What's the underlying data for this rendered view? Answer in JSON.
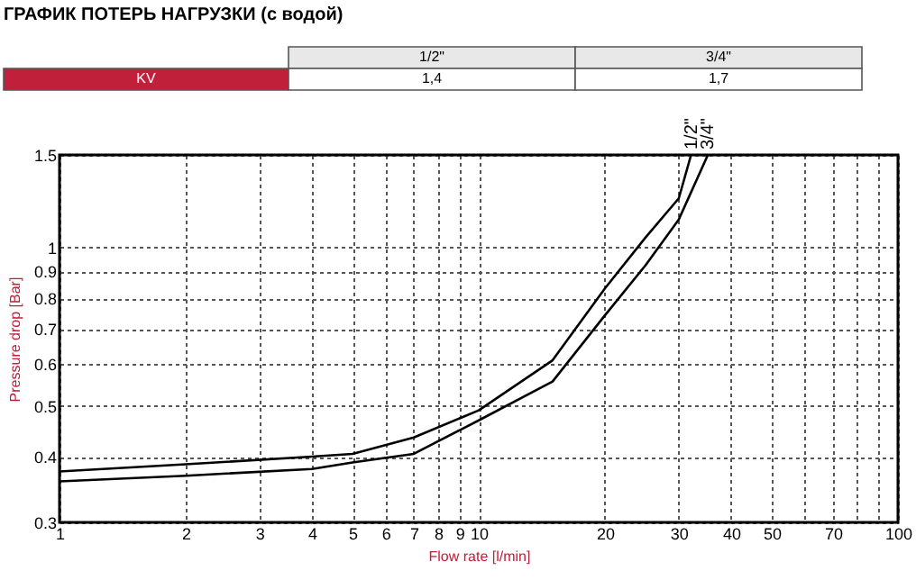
{
  "chart_data": {
    "type": "line",
    "title": "ГРАФИК ПОТЕРЬ НАГРУЗКИ (с водой)",
    "xlabel": "Flow rate [l/min]",
    "ylabel": "Pressure drop [Bar]",
    "annotations": [
      "KV",
      "1,4",
      "1,7"
    ],
    "log": "xy",
    "grid": true,
    "legend": false,
    "marker": "none",
    "line_style": "solid",
    "xlim": [
      1,
      100
    ],
    "ylim": [
      0.3,
      1.5
    ],
    "xticks": [
      1,
      2,
      3,
      4,
      5,
      6,
      7,
      8,
      9,
      10,
      20,
      30,
      40,
      50,
      {
        "value": 60,
        "label": null
      },
      70,
      {
        "value": 80,
        "label": null
      },
      {
        "value": 90,
        "label": null
      },
      100
    ],
    "yticks": [
      0.3,
      0.4,
      0.5,
      0.6,
      0.7,
      0.8,
      0.9,
      1,
      1.5
    ],
    "series": [
      {
        "name": "1/2\"",
        "color": "#000000",
        "x": [
          1,
          2,
          4,
          5,
          7,
          10,
          15,
          20,
          25,
          30,
          32.1
        ],
        "values": [
          0.375,
          0.387,
          0.4,
          0.405,
          0.435,
          0.49,
          0.61,
          0.836,
          1.045,
          1.24,
          1.5
        ]
      },
      {
        "name": "3/4\"",
        "color": "#000000",
        "x": [
          1,
          2,
          4,
          5,
          7,
          10,
          15,
          20,
          25,
          30,
          35.2
        ],
        "values": [
          0.359,
          0.368,
          0.379,
          0.39,
          0.405,
          0.469,
          0.556,
          0.743,
          0.925,
          1.13,
          1.5
        ]
      }
    ]
  }
}
